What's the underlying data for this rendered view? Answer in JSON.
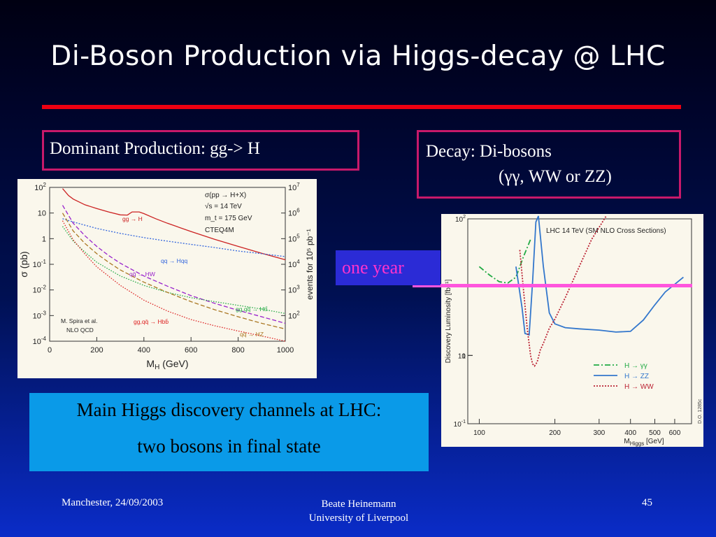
{
  "slide": {
    "title": "Di-Boson Production via Higgs-decay @ LHC",
    "production_label": "Dominant Production: gg-> H",
    "decay_label_line1": "Decay: Di-bosons",
    "decay_label_line2": "(γγ, WW or ZZ)",
    "one_year": "one year",
    "summary_line1": "Main Higgs discovery channels at LHC:",
    "summary_line2": "two bosons in final state",
    "footer_left": "Manchester, 24/09/2003",
    "footer_mid_line1": "Beate Heinemann",
    "footer_mid_line2": "University of Liverpool",
    "page_number": "45",
    "colors": {
      "title_rule": "#ee0011",
      "box_border": "#c8196a",
      "one_year_text": "#ff33cc",
      "one_year_line": "#ff55dd"
    }
  },
  "chart_data": [
    {
      "type": "line",
      "xlabel": "M_H (GeV)",
      "ylabel": "σ (pb)",
      "y2label": "events for 10^5 pb^-1",
      "xlim": [
        0,
        1000
      ],
      "ylim_log10": [
        -4,
        2
      ],
      "yscale": "log",
      "xticks": [
        "0",
        "200",
        "400",
        "600",
        "800",
        "1000"
      ],
      "yticks": [
        "10^-4",
        "10^-3",
        "10^-2",
        "10^-1",
        "1",
        "10",
        "10^2"
      ],
      "y2ticks": [
        "10^2",
        "10^3",
        "10^4",
        "10^5",
        "10^6",
        "10^7"
      ],
      "annotations": {
        "process": "σ(pp → H+X)",
        "sqrt_s": "√s = 14 TeV",
        "mtop": "m_t = 175 GeV",
        "pdf": "CTEQ4M",
        "authors": "M. Spira et al.",
        "order": "NLO QCD"
      },
      "series": [
        {
          "name": "gg → H",
          "color": "#cc2222",
          "dash": "",
          "x": [
            55,
            80,
            100,
            150,
            200,
            250,
            300,
            330,
            350,
            380,
            400,
            450,
            500,
            600,
            700,
            800,
            900,
            1000
          ],
          "y": [
            90,
            48,
            35,
            21,
            15,
            11,
            8.5,
            8.3,
            11,
            11,
            9.5,
            6,
            4,
            1.9,
            0.95,
            0.5,
            0.27,
            0.15
          ]
        },
        {
          "name": "qq → Hqq",
          "color": "#3366dd",
          "dash": "2,2",
          "x": [
            55,
            100,
            200,
            300,
            400,
            500,
            600,
            700,
            800,
            900,
            1000
          ],
          "y": [
            6,
            4.5,
            2.5,
            1.6,
            1.1,
            0.8,
            0.6,
            0.45,
            0.33,
            0.26,
            0.2
          ]
        },
        {
          "name": "qq̄ → HW",
          "color": "#9922cc",
          "dash": "6,3",
          "x": [
            55,
            100,
            150,
            200,
            250,
            300,
            400,
            500,
            600,
            700,
            800,
            900,
            1000
          ],
          "y": [
            20,
            4,
            1.3,
            0.5,
            0.22,
            0.11,
            0.035,
            0.014,
            0.006,
            0.003,
            0.0016,
            0.0009,
            0.0005
          ]
        },
        {
          "name": "gg,qq̄ → Htt̄",
          "color": "#22aa44",
          "dash": "1.5,2",
          "x": [
            55,
            100,
            150,
            200,
            300,
            400,
            500,
            600,
            700,
            800,
            900,
            1000
          ],
          "y": [
            3,
            0.8,
            0.3,
            0.12,
            0.035,
            0.015,
            0.008,
            0.005,
            0.0035,
            0.0025,
            0.0018,
            0.0012
          ]
        },
        {
          "name": "gg,qq̄ → Hbb̄",
          "color": "#dd2222",
          "dash": "1.5,2",
          "x": [
            55,
            100,
            150,
            200,
            300,
            400,
            500,
            600,
            700,
            800,
            900,
            1000
          ],
          "y": [
            5,
            0.9,
            0.25,
            0.08,
            0.015,
            0.004,
            0.0015,
            0.0007,
            0.0004,
            0.00025,
            0.00016,
            0.0001
          ]
        },
        {
          "name": "qq̄ → HZ",
          "color": "#aa7722",
          "dash": "6,3",
          "x": [
            55,
            100,
            150,
            200,
            250,
            300,
            400,
            500,
            600,
            700,
            800,
            900,
            1000
          ],
          "y": [
            10,
            2,
            0.65,
            0.26,
            0.12,
            0.06,
            0.02,
            0.008,
            0.0035,
            0.0017,
            0.0009,
            0.0005,
            0.0003
          ]
        }
      ]
    },
    {
      "type": "line",
      "title": "LHC 14 TeV (SM NLO Cross Sections)",
      "xlabel": "M_Higgs [GeV]",
      "ylabel": "Discovery Luminosity [fb^-1]",
      "xscale": "log",
      "yscale": "log",
      "xlim": [
        90,
        700
      ],
      "ylim_log10": [
        -1,
        2
      ],
      "xticks": [
        "100",
        "200",
        "300",
        "400",
        "500",
        "600"
      ],
      "yticks": [
        "10^-1",
        "1",
        "10",
        "10^2"
      ],
      "figure_id": "D.O. 1285c",
      "series": [
        {
          "name": "H → γγ",
          "color": "#22aa44",
          "dash": "8,3,2,3",
          "x": [
            100,
            110,
            120,
            130,
            140,
            150,
            160
          ],
          "y": [
            20,
            15,
            12,
            11.5,
            14,
            28,
            50
          ]
        },
        {
          "name": "H → ZZ",
          "color": "#3377cc",
          "dash": "",
          "x": [
            140,
            148,
            152,
            158,
            163,
            168,
            172,
            180,
            190,
            200,
            220,
            250,
            300,
            350,
            400,
            450,
            500,
            550,
            600,
            650
          ],
          "y": [
            20,
            5,
            2.1,
            2,
            12,
            90,
            110,
            20,
            4.2,
            2.9,
            2.55,
            2.45,
            2.35,
            2.2,
            2.25,
            3.3,
            5.5,
            8.5,
            11,
            14
          ]
        },
        {
          "name": "H → WW",
          "color": "#bb2233",
          "dash": "2,2",
          "x": [
            145,
            150,
            155,
            160,
            163,
            166,
            170,
            175,
            180,
            190,
            200,
            220,
            250,
            280,
            320
          ],
          "y": [
            35,
            9,
            2.6,
            1,
            0.75,
            0.7,
            0.8,
            1.2,
            1.5,
            2.5,
            3.4,
            7,
            20,
            50,
            110
          ]
        }
      ]
    }
  ]
}
